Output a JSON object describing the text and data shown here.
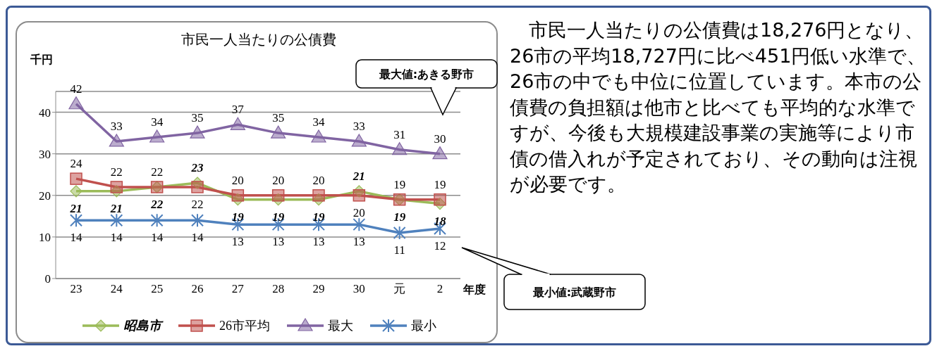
{
  "chart_data": {
    "type": "line",
    "title": "市民一人当たりの公債費",
    "ylabel": "千円",
    "xlabel": "年度",
    "categories": [
      "23",
      "24",
      "25",
      "26",
      "27",
      "28",
      "29",
      "30",
      "元",
      "2"
    ],
    "series": [
      {
        "name": "昭島市",
        "color": "#9bbb59",
        "marker": "diamond",
        "values": [
          21,
          21,
          22,
          23,
          19,
          19,
          19,
          21,
          19,
          18
        ]
      },
      {
        "name": "26市平均",
        "color": "#c0504d",
        "marker": "square",
        "values": [
          24,
          22,
          22,
          22,
          20,
          20,
          20,
          20,
          19,
          19
        ]
      },
      {
        "name": "最大",
        "color": "#8064a2",
        "marker": "triangle",
        "values": [
          42,
          33,
          34,
          35,
          37,
          35,
          34,
          33,
          31,
          30
        ]
      },
      {
        "name": "最小",
        "color": "#4f81bd",
        "marker": "cross",
        "values": [
          14,
          14,
          14,
          14,
          13,
          13,
          13,
          13,
          11,
          12
        ]
      }
    ],
    "ylim": [
      0,
      45
    ],
    "yticks": [
      0,
      10,
      20,
      30,
      40
    ],
    "grid": "y",
    "legend": "bottom",
    "data_labels": true,
    "annotations": [
      "最大値:あきる野市",
      "最小値:武蔵野市",
      "市民一人当たりの公債費は18,276円となり、26市の平均18,727円に比べ451円低い水準で、26市の中でも中位に位置しています。本市の公債費の負担額は他市と比べても平均的な水準ですが、今後も大規模建設事業の実施等により市債の借入れが予定されており、その動向は注視が必要です。"
    ]
  }
}
